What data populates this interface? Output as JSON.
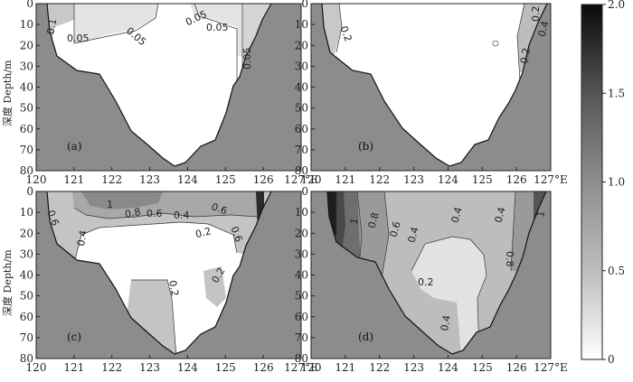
{
  "chart_data": {
    "type": "heatmap",
    "xlabel_unit": "°E",
    "ylabel": "深度 Depth/m",
    "x_ticks": [
      "120",
      "121",
      "122",
      "123",
      "124",
      "125",
      "126",
      "127°E"
    ],
    "y_ticks": [
      "0",
      "10",
      "20",
      "30",
      "40",
      "50",
      "60",
      "70",
      "80"
    ],
    "xlim": [
      120,
      127
    ],
    "ylim": [
      0,
      80
    ],
    "colorbar": {
      "ticks": [
        "2.0",
        "1.5",
        "1.0",
        "0.5",
        "0"
      ],
      "range": [
        0,
        2.0
      ]
    },
    "panels": [
      {
        "label": "(a)",
        "contour_labels": [
          "0.1",
          "0.05",
          "0.05",
          "0.05",
          "0.05",
          "0.05"
        ]
      },
      {
        "label": "(b)",
        "contour_labels": [
          "0.2",
          "0.2",
          "0.4",
          "0.2"
        ]
      },
      {
        "label": "(c)",
        "contour_labels": [
          "1",
          "0.8",
          "0.6",
          "0.4",
          "0.6",
          "0.6",
          "0.4",
          "0.2",
          "0.6",
          "0.2",
          "0.2"
        ]
      },
      {
        "label": "(d)",
        "contour_labels": [
          "1",
          "0.8",
          "0.6",
          "0.4",
          "0.4",
          "0.4",
          "0.8",
          "1",
          "0.2",
          "0.4"
        ]
      }
    ]
  }
}
